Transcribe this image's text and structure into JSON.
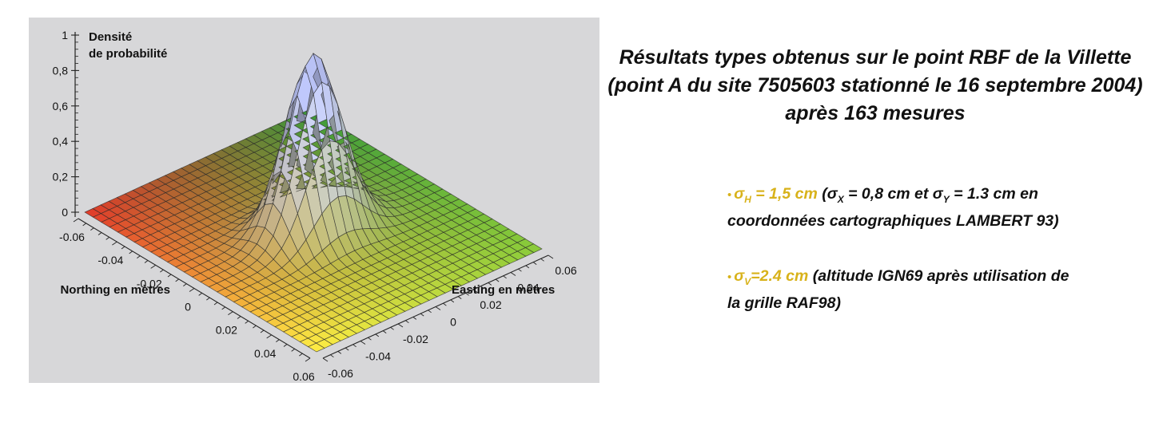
{
  "slide": {
    "title": "Résultats types obtenus sur le point RBF de la Villette (point A du site 7505603 stationné le 16 septembre 2004) après 163 mesures",
    "bullets": [
      {
        "marker": "•",
        "highlight_main": "σ",
        "highlight_sub": "H",
        "highlight_rest": " = 1,5 cm",
        "text_parts": [
          {
            "text": " (σ"
          },
          {
            "sub": "X"
          },
          {
            "text": " = 0,8 cm et σ"
          },
          {
            "sub": "Y"
          },
          {
            "text": " = 1.3 cm en coordonnées cartographiques LAMBERT 93)"
          }
        ]
      },
      {
        "marker": "•",
        "highlight_main": "σ",
        "highlight_sub": "V",
        "highlight_rest": "=2.4 cm",
        "text_parts": [
          {
            "text": " (altitude IGN69 après utilisation de la grille RAF98)"
          }
        ]
      }
    ],
    "colors": {
      "highlight": "#d8b21a",
      "panel": "#d7d7d9",
      "text": "#111111"
    }
  },
  "chart_data": {
    "type": "surface3d",
    "function": "bivariate gaussian probability density (normalised to 1 at peak)",
    "z_label_line1": "Densité",
    "z_label_line2": "de probabilité",
    "x_label": "Northing en mètres",
    "y_label": "Easting en mètres",
    "z_ticks": [
      "1",
      "0,8",
      "0,6",
      "0,4",
      "0,2",
      "0"
    ],
    "z_tick_values": [
      1,
      0.8,
      0.6,
      0.4,
      0.2,
      0
    ],
    "x_ticks": [
      "-0.06",
      "-0.04",
      "-0.02",
      "0",
      "0.02",
      "0.04",
      "0.06"
    ],
    "y_ticks": [
      "-0.06",
      "-0.04",
      "-0.02",
      "0",
      "0.02",
      "0.04",
      "0.06"
    ],
    "tick_values": [
      -0.06,
      -0.04,
      -0.02,
      0,
      0.02,
      0.04,
      0.06
    ],
    "x_range": [
      -0.06,
      0.06
    ],
    "y_range": [
      -0.06,
      0.06
    ],
    "z_range": [
      0,
      1
    ],
    "sigma_x": 0.008,
    "sigma_y": 0.013,
    "peak": 1,
    "grid_divisions": 28,
    "corner_colors": {
      "left": "#e23a2a",
      "top": "#3a9a3a",
      "right": "#8acb3a",
      "bottom": "#ffee44"
    }
  }
}
